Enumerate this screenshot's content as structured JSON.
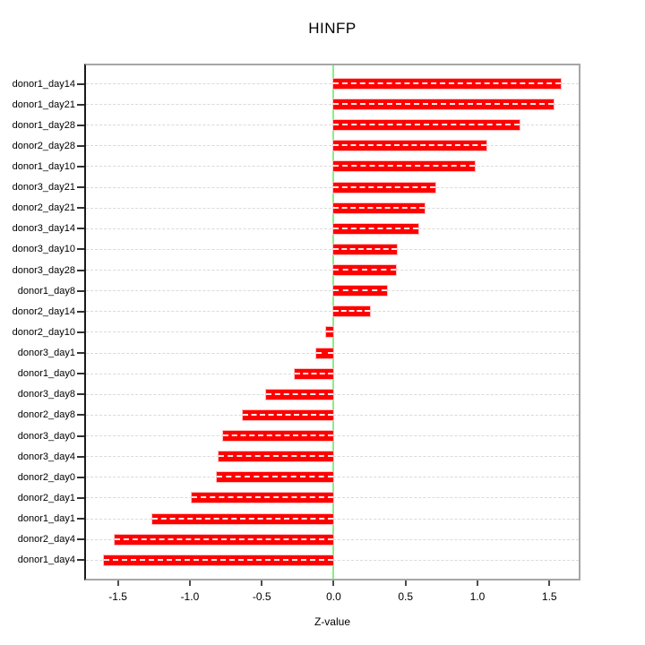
{
  "title": "HINFP",
  "chart_data": {
    "type": "bar",
    "orientation": "horizontal",
    "title": "HINFP",
    "xlabel": "Z-value",
    "ylabel": "",
    "legend": "none",
    "grid": "horizontal dashed line per category",
    "sort": "descending top to bottom",
    "categories": [
      "donor1_day14",
      "donor1_day21",
      "donor1_day28",
      "donor2_day28",
      "donor1_day10",
      "donor3_day21",
      "donor2_day21",
      "donor3_day14",
      "donor3_day10",
      "donor3_day28",
      "donor1_day8",
      "donor2_day14",
      "donor2_day10",
      "donor3_day1",
      "donor1_day0",
      "donor3_day8",
      "donor2_day8",
      "donor3_day0",
      "donor3_day4",
      "donor2_day0",
      "donor2_day1",
      "donor1_day1",
      "donor2_day4",
      "donor1_day4"
    ],
    "values": [
      1.58,
      1.53,
      1.29,
      1.06,
      0.98,
      0.71,
      0.63,
      0.59,
      0.44,
      0.435,
      0.37,
      0.25,
      -0.05,
      -0.12,
      -0.27,
      -0.47,
      -0.63,
      -0.77,
      -0.8,
      -0.81,
      -0.99,
      -1.26,
      -1.52,
      -1.6
    ],
    "xlim": [
      -1.722,
      1.704
    ],
    "xticks": [
      "-1.5",
      "-1.0",
      "-0.5",
      "0.0",
      "0.5",
      "1.0",
      "1.5"
    ],
    "xtick_values": [
      -1.5,
      -1.0,
      -0.5,
      0.0,
      0.5,
      1.0,
      1.5
    ],
    "colors": {
      "bar": "#FF0000",
      "bar_halo": "#FFBDBD",
      "bar_center_dash": "#FFFFFF",
      "zero_line": "#86EF86",
      "grid_line": "#DADADA",
      "box_border": "#A6A6A6",
      "y_axis_line": "#1A1A1A",
      "tick": "#4D4D4D",
      "text": "#000000",
      "background": "#FFFFFF"
    }
  }
}
